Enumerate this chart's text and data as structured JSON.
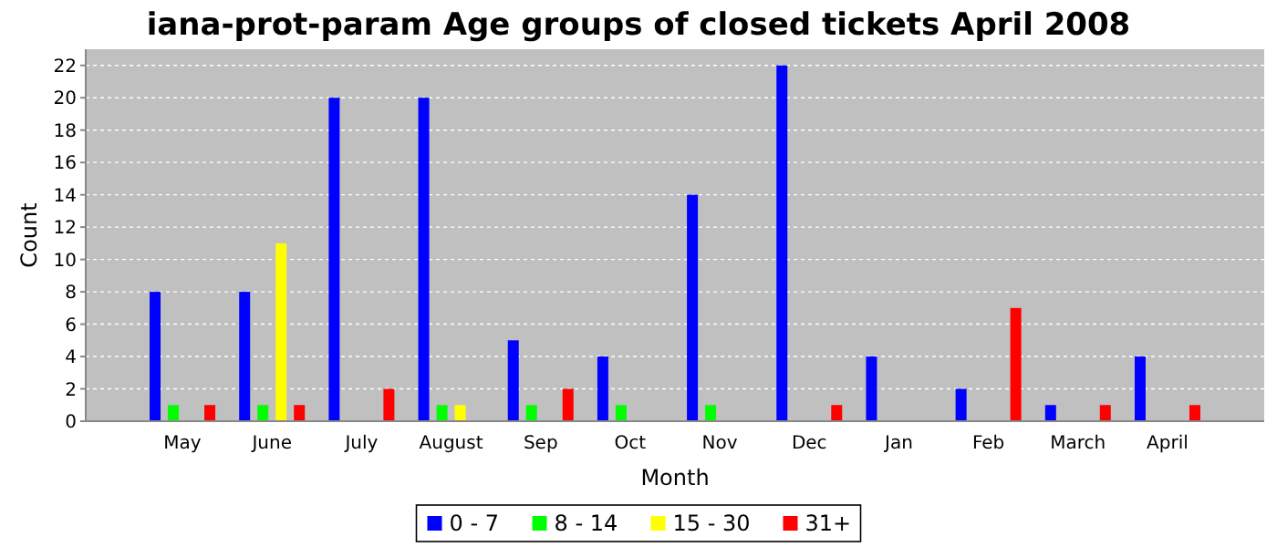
{
  "chart_data": {
    "type": "bar",
    "title": "iana-prot-param Age groups of closed tickets April 2008",
    "xlabel": "Month",
    "ylabel": "Count",
    "categories": [
      "May",
      "June",
      "July",
      "August",
      "Sep",
      "Oct",
      "Nov",
      "Dec",
      "Jan",
      "Feb",
      "March",
      "April"
    ],
    "series": [
      {
        "name": "0 - 7",
        "color": "#0000ff",
        "values": [
          8,
          8,
          20,
          20,
          5,
          4,
          14,
          22,
          4,
          2,
          1,
          4
        ]
      },
      {
        "name": "8 - 14",
        "color": "#00ff00",
        "values": [
          1,
          1,
          0,
          1,
          1,
          1,
          1,
          0,
          0,
          0,
          0,
          0
        ]
      },
      {
        "name": "15 - 30",
        "color": "#ffff00",
        "values": [
          0,
          11,
          0,
          1,
          0,
          0,
          0,
          0,
          0,
          0,
          0,
          0
        ]
      },
      {
        "name": "31+",
        "color": "#ff0000",
        "values": [
          1,
          1,
          2,
          0,
          2,
          0,
          0,
          1,
          0,
          7,
          1,
          1
        ]
      }
    ],
    "ylim": [
      0,
      23
    ],
    "yticks": [
      0,
      2,
      4,
      6,
      8,
      10,
      12,
      14,
      16,
      18,
      20,
      22
    ],
    "grid": "y",
    "legend": "bottom"
  }
}
